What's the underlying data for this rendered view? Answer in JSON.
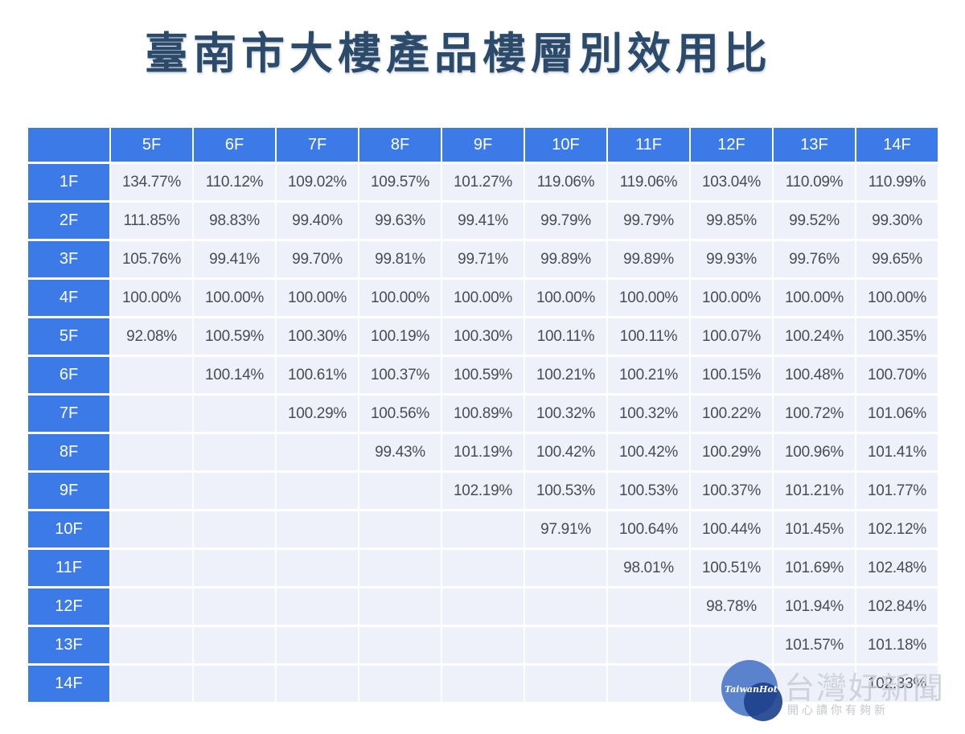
{
  "title": "臺南市大樓產品樓層別效用比",
  "columns": [
    "5F",
    "6F",
    "7F",
    "8F",
    "9F",
    "10F",
    "11F",
    "12F",
    "13F",
    "14F"
  ],
  "rows": [
    {
      "label": "1F",
      "cells": [
        "134.77%",
        "110.12%",
        "109.02%",
        "109.57%",
        "101.27%",
        "119.06%",
        "119.06%",
        "103.04%",
        "110.09%",
        "110.99%"
      ]
    },
    {
      "label": "2F",
      "cells": [
        "111.85%",
        "98.83%",
        "99.40%",
        "99.63%",
        "99.41%",
        "99.79%",
        "99.79%",
        "99.85%",
        "99.52%",
        "99.30%"
      ]
    },
    {
      "label": "3F",
      "cells": [
        "105.76%",
        "99.41%",
        "99.70%",
        "99.81%",
        "99.71%",
        "99.89%",
        "99.89%",
        "99.93%",
        "99.76%",
        "99.65%"
      ]
    },
    {
      "label": "4F",
      "cells": [
        "100.00%",
        "100.00%",
        "100.00%",
        "100.00%",
        "100.00%",
        "100.00%",
        "100.00%",
        "100.00%",
        "100.00%",
        "100.00%"
      ]
    },
    {
      "label": "5F",
      "cells": [
        "92.08%",
        "100.59%",
        "100.30%",
        "100.19%",
        "100.30%",
        "100.11%",
        "100.11%",
        "100.07%",
        "100.24%",
        "100.35%"
      ]
    },
    {
      "label": "6F",
      "cells": [
        "",
        "100.14%",
        "100.61%",
        "100.37%",
        "100.59%",
        "100.21%",
        "100.21%",
        "100.15%",
        "100.48%",
        "100.70%"
      ]
    },
    {
      "label": "7F",
      "cells": [
        "",
        "",
        "100.29%",
        "100.56%",
        "100.89%",
        "100.32%",
        "100.32%",
        "100.22%",
        "100.72%",
        "101.06%"
      ]
    },
    {
      "label": "8F",
      "cells": [
        "",
        "",
        "",
        "99.43%",
        "101.19%",
        "100.42%",
        "100.42%",
        "100.29%",
        "100.96%",
        "101.41%"
      ]
    },
    {
      "label": "9F",
      "cells": [
        "",
        "",
        "",
        "",
        "102.19%",
        "100.53%",
        "100.53%",
        "100.37%",
        "101.21%",
        "101.77%"
      ]
    },
    {
      "label": "10F",
      "cells": [
        "",
        "",
        "",
        "",
        "",
        "97.91%",
        "100.64%",
        "100.44%",
        "101.45%",
        "102.12%"
      ]
    },
    {
      "label": "11F",
      "cells": [
        "",
        "",
        "",
        "",
        "",
        "",
        "98.01%",
        "100.51%",
        "101.69%",
        "102.48%"
      ]
    },
    {
      "label": "12F",
      "cells": [
        "",
        "",
        "",
        "",
        "",
        "",
        "",
        "98.78%",
        "101.94%",
        "102.84%"
      ]
    },
    {
      "label": "13F",
      "cells": [
        "",
        "",
        "",
        "",
        "",
        "",
        "",
        "",
        "101.57%",
        "101.18%"
      ]
    },
    {
      "label": "14F",
      "cells": [
        "",
        "",
        "",
        "",
        "",
        "",
        "",
        "",
        "",
        "102.33%"
      ]
    }
  ],
  "watermark": {
    "logo_text": "TaiwanHot",
    "name": "台灣好新聞",
    "sub": "開心讀你有夠新"
  }
}
